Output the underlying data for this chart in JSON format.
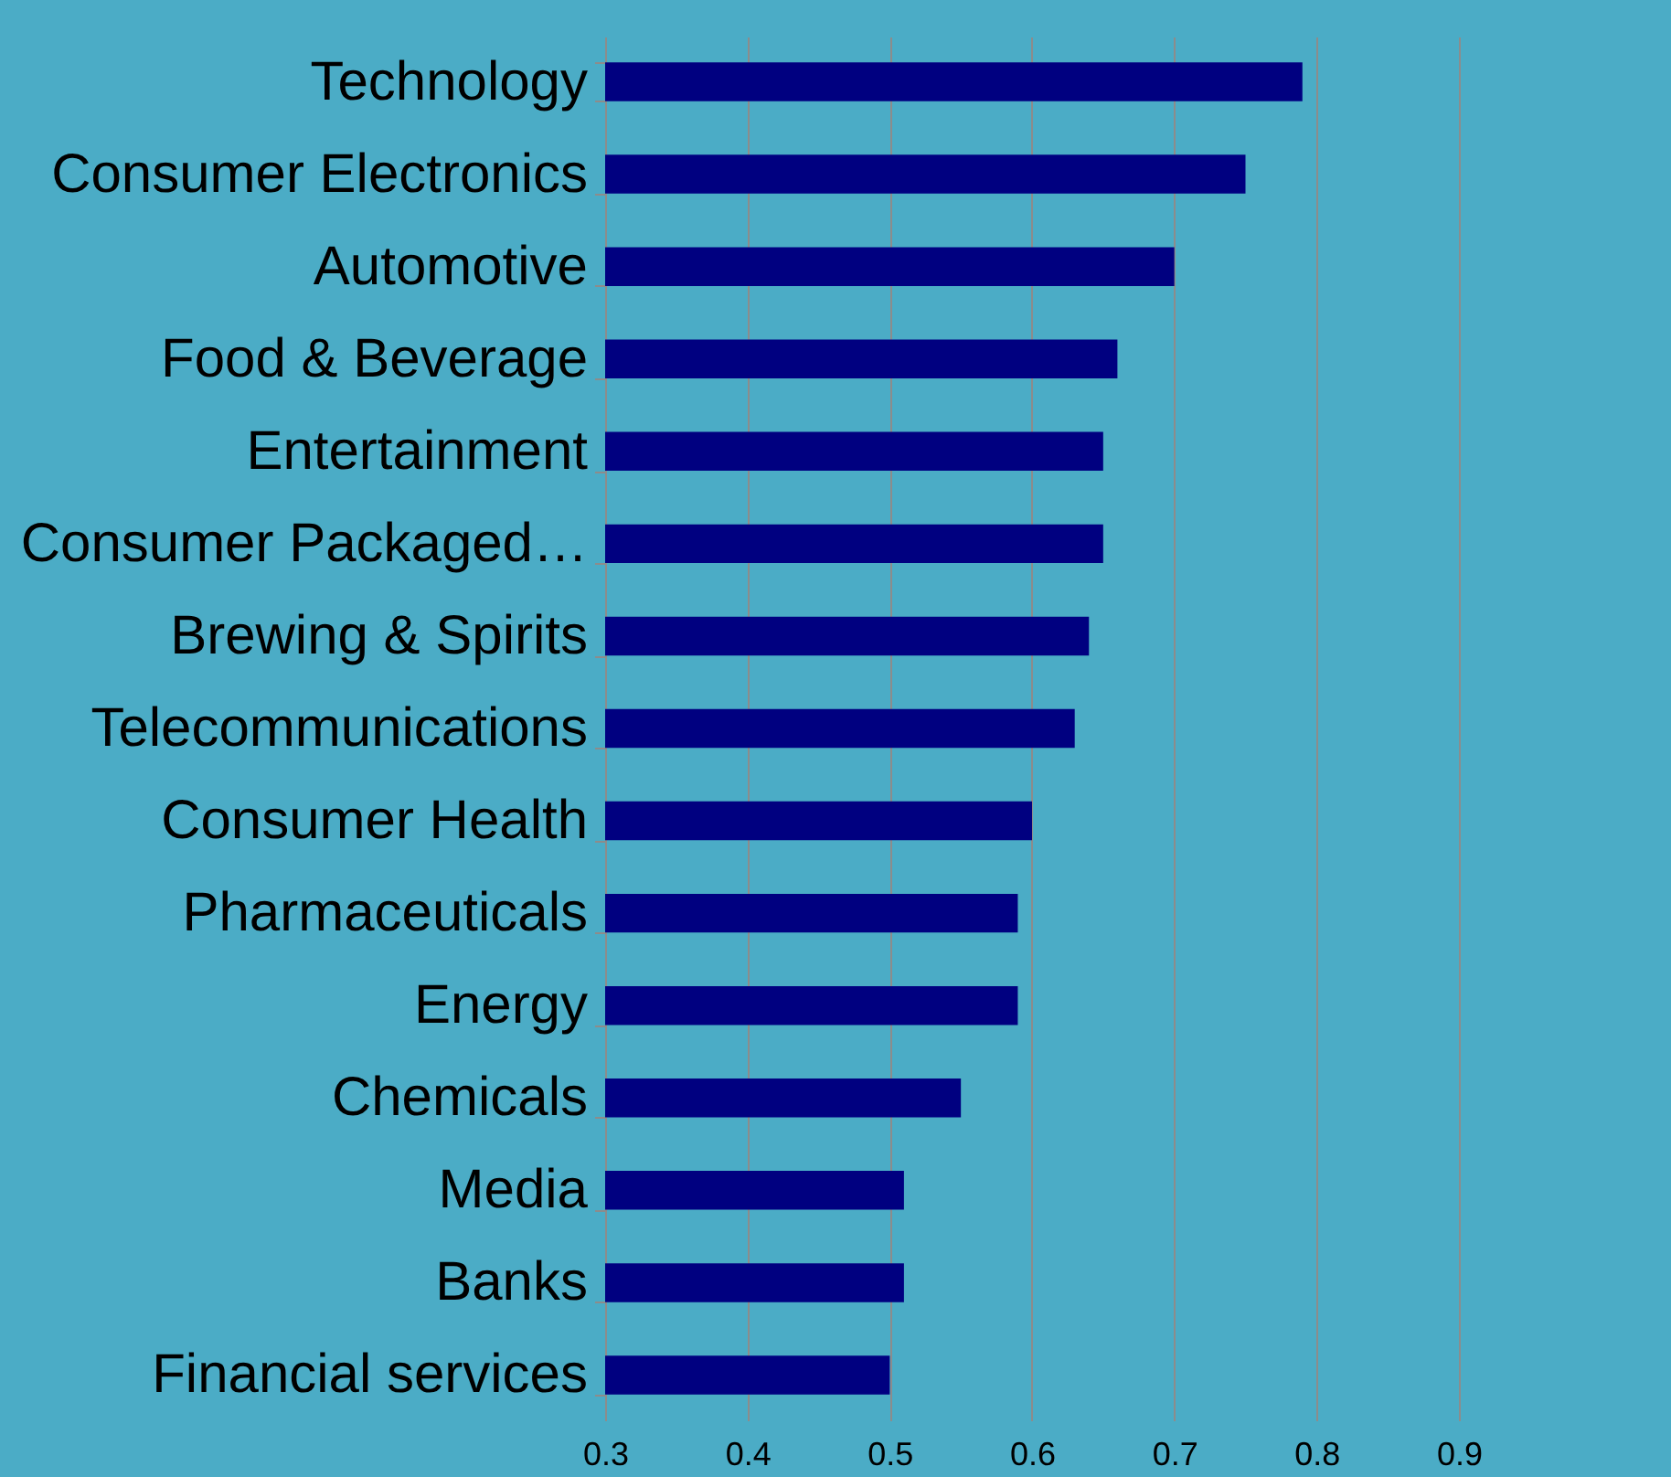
{
  "chart_data": {
    "type": "bar",
    "orientation": "horizontal",
    "categories": [
      "Technology",
      "Consumer Electronics",
      "Automotive",
      "Food & Beverage",
      "Entertainment",
      "Consumer Packaged…",
      "Brewing & Spirits",
      "Telecommunications",
      "Consumer Health",
      "Pharmaceuticals",
      "Energy",
      "Chemicals",
      "Media",
      "Banks",
      "Financial services"
    ],
    "values": [
      0.79,
      0.75,
      0.7,
      0.66,
      0.65,
      0.65,
      0.64,
      0.63,
      0.6,
      0.59,
      0.59,
      0.55,
      0.51,
      0.51,
      0.5
    ],
    "color": "#000080",
    "xlim": [
      0.3,
      0.9
    ],
    "xticks": [
      0.3,
      0.4,
      0.5,
      0.6,
      0.7,
      0.8,
      0.9
    ],
    "grid": "x"
  }
}
